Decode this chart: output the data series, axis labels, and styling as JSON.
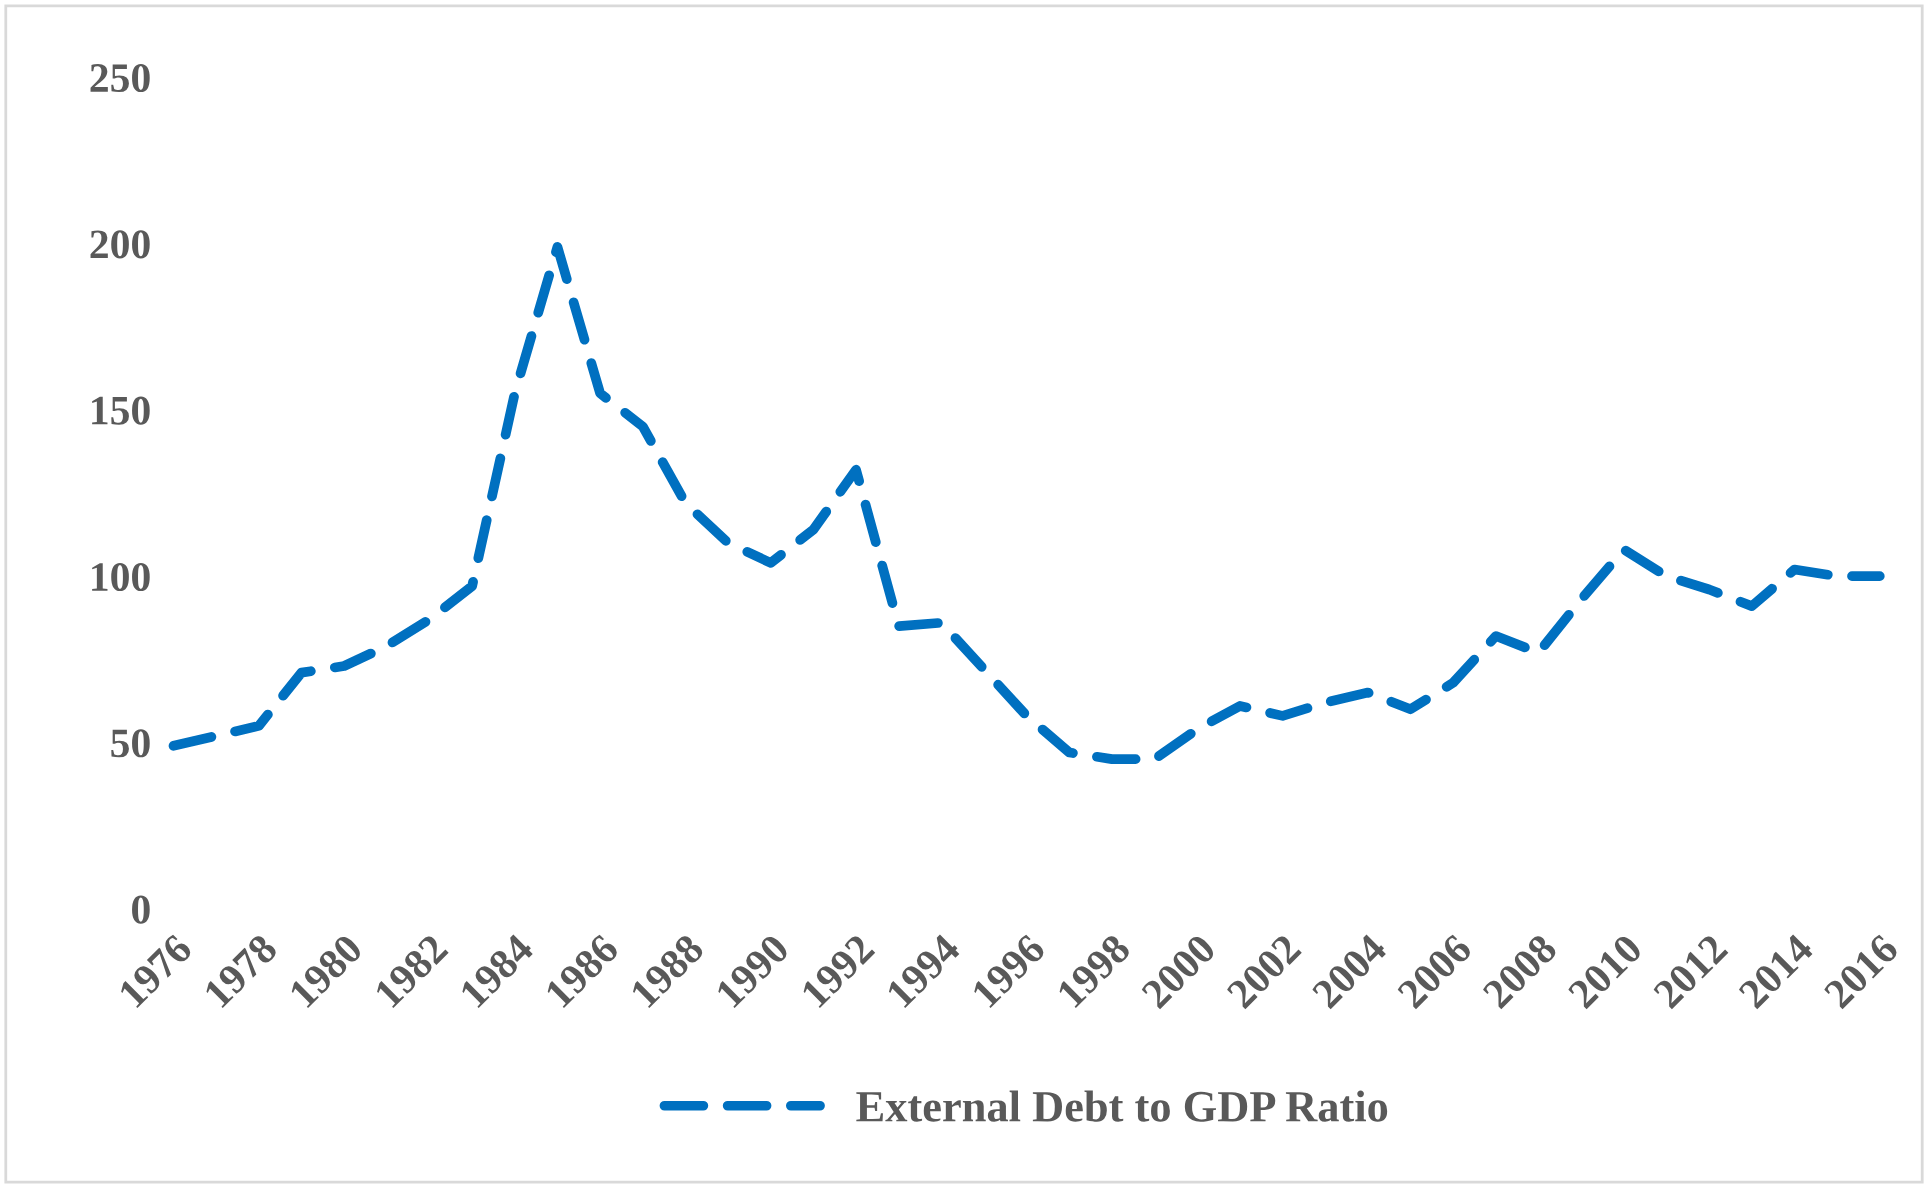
{
  "chart_data": {
    "type": "line",
    "x": [
      1976,
      1977,
      1978,
      1979,
      1980,
      1981,
      1982,
      1983,
      1984,
      1985,
      1986,
      1987,
      1988,
      1989,
      1990,
      1991,
      1992,
      1993,
      1994,
      1995,
      1996,
      1997,
      1998,
      1999,
      2000,
      2001,
      2002,
      2003,
      2004,
      2005,
      2006,
      2007,
      2008,
      2009,
      2010,
      2011,
      2012,
      2013,
      2014,
      2015,
      2016
    ],
    "series": [
      {
        "name": "External Debt to GDP Ratio",
        "color": "#0070c0",
        "values": [
          49,
          52,
          55,
          71,
          73,
          79,
          87,
          97,
          155,
          199,
          155,
          145,
          122,
          110,
          104,
          114,
          132,
          85,
          86,
          72,
          58,
          47,
          45,
          45,
          54,
          61,
          58,
          62,
          65,
          60,
          68,
          82,
          77,
          93,
          108,
          100,
          96,
          91,
          102,
          100,
          100
        ]
      }
    ],
    "xlim": [
      1976,
      2016
    ],
    "xticks": [
      1976,
      1978,
      1980,
      1982,
      1984,
      1986,
      1988,
      1990,
      1992,
      1994,
      1996,
      1998,
      2000,
      2002,
      2004,
      2006,
      2008,
      2010,
      2012,
      2014,
      2016
    ],
    "ylim": [
      0,
      250
    ],
    "yticks": [
      0,
      50,
      100,
      150,
      200,
      250
    ],
    "grid": false,
    "legend": "bottom",
    "line_style": "dashed",
    "marker": "none"
  }
}
